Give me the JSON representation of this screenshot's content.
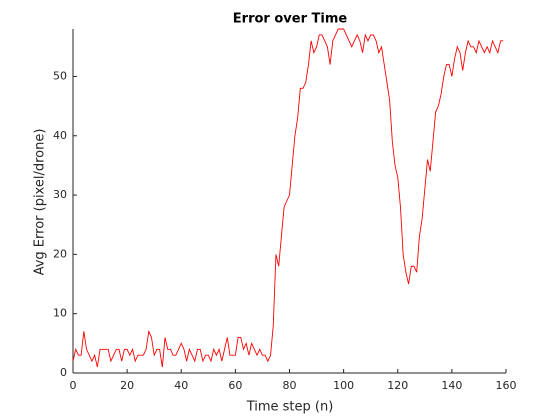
{
  "chart_data": {
    "type": "line",
    "title": "Error over Time",
    "x_label": "Time step (n)",
    "y_label": "Avg Error (pixel/drone)",
    "x": [
      0,
      1,
      2,
      3,
      4,
      5,
      6,
      7,
      8,
      9,
      10,
      11,
      12,
      13,
      14,
      15,
      16,
      17,
      18,
      19,
      20,
      21,
      22,
      23,
      24,
      25,
      26,
      27,
      28,
      29,
      30,
      31,
      32,
      33,
      34,
      35,
      36,
      37,
      38,
      39,
      40,
      41,
      42,
      43,
      44,
      45,
      46,
      47,
      48,
      49,
      50,
      51,
      52,
      53,
      54,
      55,
      56,
      57,
      58,
      59,
      60,
      61,
      62,
      63,
      64,
      65,
      66,
      67,
      68,
      69,
      70,
      71,
      72,
      73,
      74,
      75,
      76,
      77,
      78,
      79,
      80,
      81,
      82,
      83,
      84,
      85,
      86,
      87,
      88,
      89,
      90,
      91,
      92,
      93,
      94,
      95,
      96,
      97,
      98,
      99,
      100,
      101,
      102,
      103,
      104,
      105,
      106,
      107,
      108,
      109,
      110,
      111,
      112,
      113,
      114,
      115,
      116,
      117,
      118,
      119,
      120,
      121,
      122,
      123,
      124,
      125,
      126,
      127,
      128,
      129,
      130,
      131,
      132,
      133,
      134,
      135,
      136,
      137,
      138,
      139,
      140,
      141,
      142,
      143,
      144,
      145,
      146,
      147,
      148,
      149,
      150,
      151,
      152,
      153,
      154,
      155,
      156,
      157,
      158,
      159
    ],
    "series": [
      {
        "name": "Error",
        "color": "#ff0000",
        "values": [
          2,
          4,
          3,
          3,
          7,
          4,
          3,
          2,
          3,
          1,
          4,
          4,
          4,
          4,
          2,
          3,
          4,
          4,
          2,
          4,
          4,
          3,
          4,
          2,
          3,
          3,
          3,
          4,
          7,
          6,
          3,
          4,
          4,
          1,
          6,
          4,
          4,
          3,
          3,
          4,
          5,
          4,
          2,
          4,
          3,
          2,
          4,
          4,
          2,
          3,
          3,
          2,
          4,
          3,
          4,
          2,
          4,
          6,
          3,
          3,
          3,
          6,
          6,
          4,
          5,
          3,
          5,
          4,
          3,
          4,
          3,
          3,
          2,
          3,
          8,
          20,
          18,
          23,
          28,
          29,
          30,
          35,
          40,
          43,
          48,
          48,
          49,
          52,
          56,
          54,
          55,
          57,
          57,
          56,
          55,
          52,
          56,
          57,
          58,
          58,
          58,
          57,
          56,
          55,
          56,
          57,
          56,
          54,
          57,
          56,
          57,
          57,
          56,
          54,
          55,
          52,
          49,
          46,
          39,
          35,
          33,
          28,
          20,
          17,
          15,
          18,
          18,
          17,
          23,
          26,
          31,
          36,
          34,
          39,
          44,
          45,
          47,
          50,
          52,
          52,
          50,
          53,
          55,
          54,
          51,
          54,
          56,
          55,
          55,
          54,
          56,
          55,
          54,
          55,
          54,
          56,
          55,
          54,
          56,
          56
        ]
      }
    ],
    "xlim": [
      0,
      160
    ],
    "ylim": [
      0,
      58
    ],
    "xticks": [
      0,
      20,
      40,
      60,
      80,
      100,
      120,
      140,
      160
    ],
    "yticks": [
      0,
      10,
      20,
      30,
      40,
      50
    ]
  }
}
